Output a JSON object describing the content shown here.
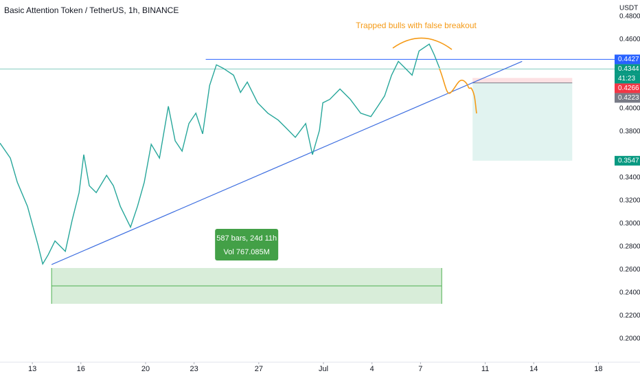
{
  "chart_data": {
    "type": "line",
    "title": "Basic Attention Token / TetherUS, 1h, BINANCE",
    "axis_unit": "USDT",
    "color": "#26a69a",
    "x": [
      -2.0,
      -1.36,
      -0.93,
      -0.3,
      0.34,
      0.64,
      0.98,
      1.4,
      2.04,
      2.46,
      2.89,
      3.18,
      3.52,
      3.95,
      4.59,
      5.01,
      5.44,
      6.07,
      6.5,
      6.92,
      7.35,
      7.86,
      8.41,
      8.83,
      9.26,
      9.68,
      10.11,
      10.53,
      10.96,
      11.38,
      11.8,
      12.44,
      12.87,
      13.29,
      13.93,
      14.56,
      15.2,
      15.63,
      16.26,
      16.9,
      17.32,
      17.75,
      17.96,
      18.39,
      19.02,
      19.66,
      20.3,
      20.93,
      21.36,
      21.78,
      22.21,
      22.63,
      23.06,
      23.48,
      23.91,
      24.54,
      24.84,
      25.18
    ],
    "values": [
      0.37,
      0.357,
      0.336,
      0.315,
      0.282,
      0.265,
      0.273,
      0.285,
      0.276,
      0.303,
      0.327,
      0.36,
      0.333,
      0.327,
      0.342,
      0.333,
      0.315,
      0.297,
      0.315,
      0.336,
      0.369,
      0.357,
      0.402,
      0.372,
      0.363,
      0.387,
      0.396,
      0.378,
      0.42,
      0.438,
      0.435,
      0.429,
      0.414,
      0.423,
      0.405,
      0.396,
      0.39,
      0.384,
      0.375,
      0.387,
      0.36,
      0.381,
      0.405,
      0.408,
      0.417,
      0.408,
      0.396,
      0.393,
      0.402,
      0.411,
      0.429,
      0.441,
      0.435,
      0.429,
      0.45,
      0.456,
      0.447,
      0.435
    ],
    "xlim": [
      -2.0,
      36.0
    ],
    "ylim": [
      0.1797,
      0.4943
    ],
    "xticks": [
      {
        "value": 0,
        "label": "13"
      },
      {
        "value": 3,
        "label": "16"
      },
      {
        "value": 7,
        "label": "20"
      },
      {
        "value": 10,
        "label": "23"
      },
      {
        "value": 14,
        "label": "27"
      },
      {
        "value": 18,
        "label": "Jul"
      },
      {
        "value": 21,
        "label": "4"
      },
      {
        "value": 24,
        "label": "7"
      },
      {
        "value": 28,
        "label": "11"
      },
      {
        "value": 31,
        "label": "14"
      },
      {
        "value": 35,
        "label": "18"
      }
    ],
    "yticks": [
      {
        "value": 0.48,
        "label": "0.4800"
      },
      {
        "value": 0.46,
        "label": "0.4600"
      },
      {
        "value": 0.4,
        "label": "0.4000"
      },
      {
        "value": 0.38,
        "label": "0.3800"
      },
      {
        "value": 0.34,
        "label": "0.3400"
      },
      {
        "value": 0.32,
        "label": "0.3200"
      },
      {
        "value": 0.3,
        "label": "0.3000"
      },
      {
        "value": 0.28,
        "label": "0.2800"
      },
      {
        "value": 0.26,
        "label": "0.2600"
      },
      {
        "value": 0.24,
        "label": "0.2400"
      },
      {
        "value": 0.22,
        "label": "0.2200"
      },
      {
        "value": 0.2,
        "label": "0.2000"
      }
    ],
    "grid": false,
    "price_tags": [
      {
        "value": 0.4427,
        "color": "#2962ff"
      },
      {
        "value": 0.4344,
        "color": "#089981",
        "countdown": "41:23"
      },
      {
        "value": 0.4266,
        "color": "#f23645"
      },
      {
        "value": 0.4223,
        "color": "#787b86"
      },
      {
        "value": 0.3547,
        "color": "#089981"
      }
    ],
    "resistance": {
      "value": 0.4427,
      "x_start": 10.72
    },
    "trendline": {
      "x": [
        1.19,
        30.28
      ],
      "values": [
        0.2645,
        0.441
      ]
    },
    "position": {
      "x": [
        27.22,
        33.38
      ],
      "entry": 0.4223,
      "stop": 0.4266,
      "target": 0.3547
    },
    "range": {
      "x": [
        1.19,
        25.31
      ],
      "values": [
        0.2615,
        0.2304
      ],
      "label_bars": "587 bars, 24d 11h",
      "label_vol": "Vol 767.085M"
    },
    "annotation": "Trapped bulls with false breakout"
  }
}
